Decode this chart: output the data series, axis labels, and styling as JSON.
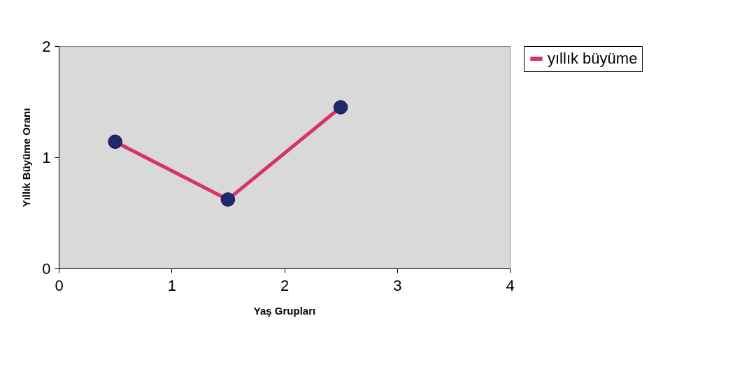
{
  "chart_data": {
    "type": "line",
    "xlabel": "Yaş Grupları",
    "ylabel": "Yıllık Büyüme Oranı",
    "x": [
      0.5,
      1.5,
      2.5
    ],
    "series": [
      {
        "name": "yıllık büyüme",
        "color": "#d6336c",
        "values": [
          1.14,
          0.62,
          1.45
        ]
      }
    ],
    "xlim": [
      0,
      4
    ],
    "ylim": [
      0,
      2
    ],
    "xticks": [
      0,
      1,
      2,
      3,
      4
    ],
    "yticks": [
      0,
      1,
      2
    ],
    "grid": false,
    "legend": "right",
    "marker": "circle",
    "line_style": "solid"
  }
}
